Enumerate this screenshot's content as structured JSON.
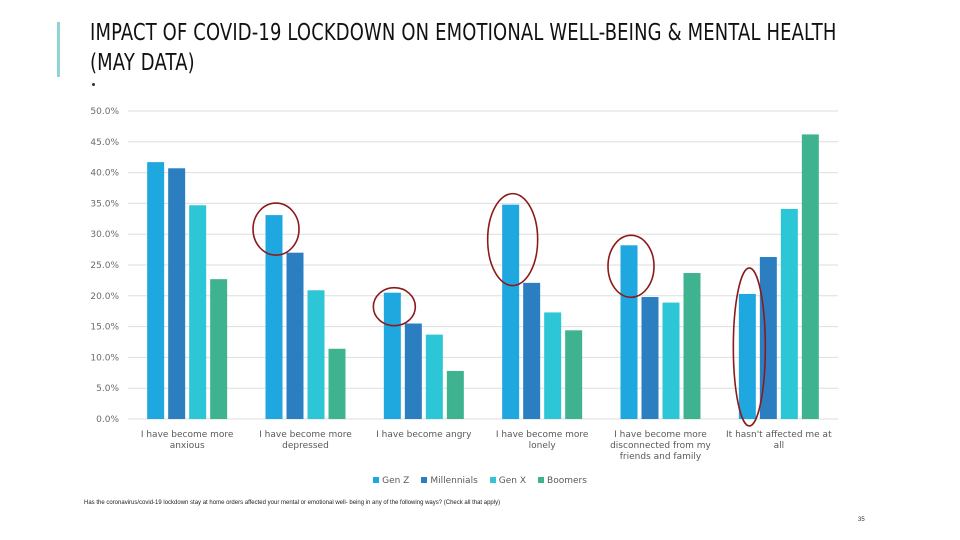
{
  "slide": {
    "title": "IMPACT OF COVID-19 LOCKDOWN ON EMOTIONAL WELL-BEING & MENTAL HEALTH (MAY DATA)",
    "footnote": "Has the coronavirus/covid-19 lockdown stay at home orders affected your mental or emotional well- being in any of the following ways? (Check all that apply)",
    "page_number": "35",
    "accent_color": "#8fd3d6",
    "highlight_color": "#8b1a1a"
  },
  "chart_data": {
    "type": "bar",
    "title": "",
    "xlabel": "",
    "ylabel": "",
    "ylim": [
      0,
      50
    ],
    "y_ticks": [
      "0.0%",
      "5.0%",
      "10.0%",
      "15.0%",
      "20.0%",
      "25.0%",
      "30.0%",
      "35.0%",
      "40.0%",
      "45.0%",
      "50.0%"
    ],
    "y_tick_values": [
      0,
      5,
      10,
      15,
      20,
      25,
      30,
      35,
      40,
      45,
      50
    ],
    "grid": true,
    "legend_position": "bottom",
    "categories": [
      [
        "I have become more",
        "anxious"
      ],
      [
        "I have become more",
        "depressed"
      ],
      [
        "I have become angry"
      ],
      [
        "I have become more",
        "lonely"
      ],
      [
        "I have become more",
        "disconnected from my",
        "friends and family"
      ],
      [
        "It hasn't affected me at",
        "all"
      ]
    ],
    "series": [
      {
        "name": "Gen Z",
        "color": "#1ea8df",
        "values": [
          41.7,
          33.1,
          20.5,
          34.8,
          28.2,
          20.3
        ]
      },
      {
        "name": "Millennials",
        "color": "#2b7fc1",
        "values": [
          40.7,
          27.0,
          15.5,
          22.1,
          19.8,
          26.3
        ]
      },
      {
        "name": "Gen X",
        "color": "#2dc6d6",
        "values": [
          34.7,
          20.9,
          13.7,
          17.3,
          18.9,
          34.1
        ]
      },
      {
        "name": "Boomers",
        "color": "#3fb38f",
        "values": [
          22.7,
          11.4,
          7.8,
          14.4,
          23.7,
          46.2
        ]
      }
    ],
    "annotations": [
      {
        "type": "ellipse",
        "category_index": 1,
        "series": "Gen Z",
        "label": "highlight"
      },
      {
        "type": "ellipse",
        "category_index": 2,
        "series": "Gen Z",
        "label": "highlight"
      },
      {
        "type": "ellipse",
        "category_index": 3,
        "series": "Gen Z",
        "label": "highlight"
      },
      {
        "type": "ellipse",
        "category_index": 4,
        "series": "Gen Z",
        "label": "highlight"
      },
      {
        "type": "ellipse",
        "category_index": 5,
        "series": "Gen Z",
        "label": "highlight"
      }
    ]
  }
}
